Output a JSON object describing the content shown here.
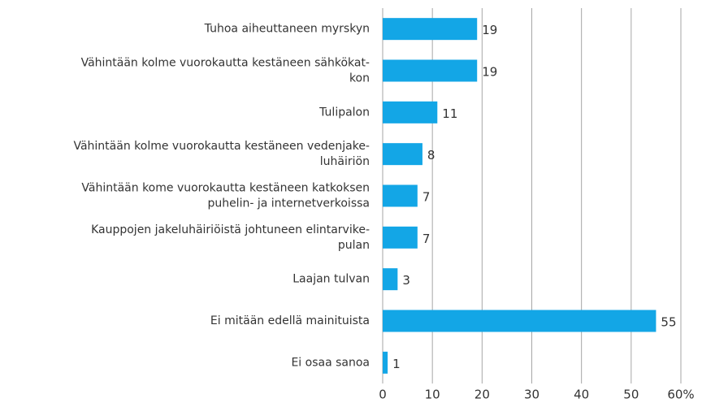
{
  "chart_data": {
    "type": "barh",
    "categories": [
      [
        "Tuhoa aiheuttaneen myrskyn"
      ],
      [
        "Vähintään kolme vuorokautta kestäneen sähkökat-",
        "kon"
      ],
      [
        "Tulipalon"
      ],
      [
        "Vähintään kolme vuorokautta kestäneen vedenjake-",
        "luhäiriön"
      ],
      [
        "Vähintään kome vuorokautta kestäneen katkoksen",
        "puhelin- ja internetverkoissa"
      ],
      [
        "Kauppojen jakeluhäiriöistä johtuneen elintarvike-",
        "pulan"
      ],
      [
        "Laajan tulvan"
      ],
      [
        "Ei mitään edellä mainituista"
      ],
      [
        "Ei osaa sanoa"
      ]
    ],
    "values": [
      19,
      19,
      11,
      8,
      7,
      7,
      3,
      55,
      1
    ],
    "color": "#13a6e6",
    "xlim": [
      0,
      60
    ],
    "xticks": [
      0,
      10,
      20,
      30,
      40,
      50,
      {
        "value": 60,
        "label": "60%"
      }
    ],
    "grid": true
  }
}
